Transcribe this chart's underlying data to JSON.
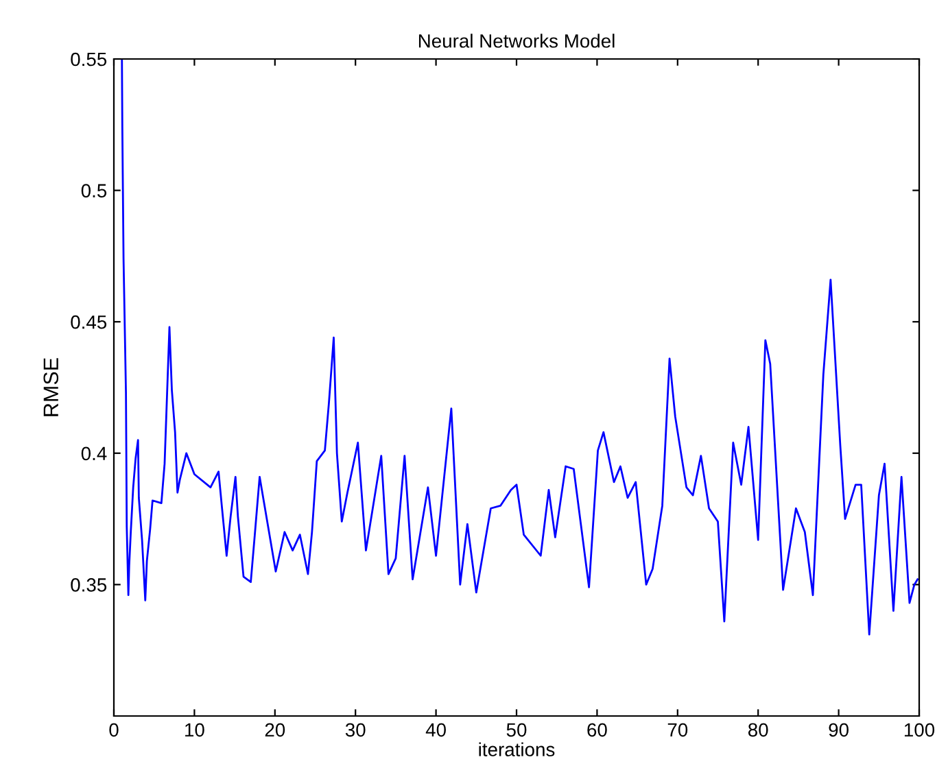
{
  "chart_data": {
    "type": "line",
    "title": "Neural Networks Model",
    "xlabel": "iterations",
    "ylabel": "RMSE",
    "xlim": [
      0,
      100
    ],
    "ylim": [
      0.3,
      0.55
    ],
    "xticks": [
      0,
      10,
      20,
      30,
      40,
      50,
      60,
      70,
      80,
      90,
      100
    ],
    "yticks": [
      0.35,
      0.4,
      0.45,
      0.5,
      0.55
    ],
    "marker": "none",
    "line_style": "solid",
    "series": [
      {
        "color": "#0000ff",
        "x": [
          1.0,
          1.05,
          1.2,
          1.5,
          1.6,
          1.8,
          1.9,
          2.1,
          2.4,
          2.7,
          3.0,
          3.1,
          3.5,
          3.9,
          4.1,
          4.5,
          4.8,
          5.9,
          6.3,
          6.6,
          6.9,
          7.2,
          7.6,
          7.9,
          8.2,
          9.0,
          10,
          12,
          13,
          13.4,
          14,
          14.5,
          15.1,
          15.4,
          16.1,
          17,
          17.5,
          18.1,
          18.6,
          20.1,
          21.2,
          22.2,
          23.1,
          24.1,
          24.6,
          25.2,
          26.2,
          26.7,
          27.3,
          27.7,
          28.3,
          29,
          30.3,
          31.3,
          33.2,
          34.1,
          35,
          36.1,
          37.1,
          39,
          40,
          41.9,
          43,
          43.9,
          45,
          46.8,
          48,
          49.3,
          50,
          50.9,
          53,
          54,
          54.8,
          56.1,
          57.1,
          59,
          60.1,
          60.8,
          62.1,
          62.9,
          63.8,
          64.8,
          66.1,
          66.9,
          68.1,
          69,
          69.7,
          71.1,
          71.9,
          72.9,
          73.9,
          75,
          75.8,
          76.9,
          77.9,
          78.8,
          80,
          80.9,
          81.5,
          83.1,
          84.7,
          85.8,
          86.8,
          88.1,
          89,
          90.2,
          90.8,
          92.1,
          92.8,
          93.8,
          95,
          95.7,
          96.8,
          97.8,
          98.8,
          99.4,
          99.8
        ],
        "values": [
          0.55,
          0.524,
          0.474,
          0.423,
          0.372,
          0.346,
          0.357,
          0.37,
          0.387,
          0.398,
          0.405,
          0.383,
          0.367,
          0.344,
          0.359,
          0.371,
          0.382,
          0.381,
          0.396,
          0.422,
          0.448,
          0.424,
          0.408,
          0.385,
          0.39,
          0.4,
          0.392,
          0.387,
          0.393,
          0.38,
          0.361,
          0.376,
          0.391,
          0.376,
          0.353,
          0.351,
          0.369,
          0.391,
          0.382,
          0.355,
          0.37,
          0.363,
          0.369,
          0.354,
          0.37,
          0.397,
          0.401,
          0.419,
          0.444,
          0.4,
          0.374,
          0.385,
          0.404,
          0.363,
          0.399,
          0.354,
          0.36,
          0.399,
          0.352,
          0.387,
          0.361,
          0.417,
          0.35,
          0.373,
          0.347,
          0.379,
          0.38,
          0.386,
          0.388,
          0.369,
          0.361,
          0.386,
          0.368,
          0.395,
          0.394,
          0.349,
          0.401,
          0.408,
          0.389,
          0.395,
          0.383,
          0.389,
          0.35,
          0.356,
          0.38,
          0.436,
          0.414,
          0.387,
          0.384,
          0.399,
          0.379,
          0.374,
          0.336,
          0.404,
          0.388,
          0.41,
          0.367,
          0.443,
          0.434,
          0.348,
          0.379,
          0.37,
          0.346,
          0.43,
          0.466,
          0.403,
          0.375,
          0.388,
          0.388,
          0.331,
          0.384,
          0.396,
          0.34,
          0.391,
          0.343,
          0.35,
          0.352
        ]
      }
    ]
  }
}
